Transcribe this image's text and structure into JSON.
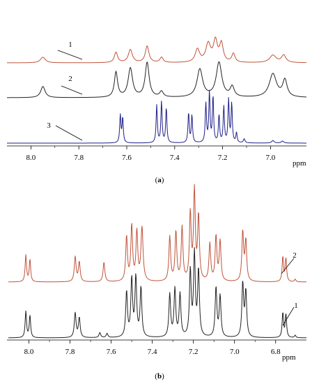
{
  "chart_data": [
    {
      "type": "line",
      "title": "",
      "panel_label_open": "(",
      "panel_label_letter": "a",
      "panel_label_close": ")",
      "xlabel": "ppm",
      "xlim": [
        8.1,
        6.85
      ],
      "x_reversed": true,
      "x_ticks": [
        "8.0",
        "7.8",
        "7.6",
        "7.4",
        "7.2",
        "7.0"
      ],
      "x_tick_values": [
        8.0,
        7.8,
        7.6,
        7.4,
        7.2,
        7.0
      ],
      "series": [
        {
          "name": "3",
          "color": "#c0533a",
          "offset_level": 2,
          "peaks": [
            {
              "x": 7.95,
              "h": 0.13,
              "w": 0.012
            },
            {
              "x": 7.645,
              "h": 0.24,
              "w": 0.008
            },
            {
              "x": 7.585,
              "h": 0.3,
              "w": 0.01
            },
            {
              "x": 7.515,
              "h": 0.38,
              "w": 0.009
            },
            {
              "x": 7.455,
              "h": 0.12,
              "w": 0.008
            },
            {
              "x": 7.305,
              "h": 0.3,
              "w": 0.011
            },
            {
              "x": 7.26,
              "h": 0.42,
              "w": 0.012
            },
            {
              "x": 7.23,
              "h": 0.48,
              "w": 0.01
            },
            {
              "x": 7.205,
              "h": 0.42,
              "w": 0.009
            },
            {
              "x": 7.155,
              "h": 0.2,
              "w": 0.008
            },
            {
              "x": 6.99,
              "h": 0.17,
              "w": 0.016
            },
            {
              "x": 6.945,
              "h": 0.17,
              "w": 0.011
            }
          ]
        },
        {
          "name": "2",
          "color": "#222222",
          "offset_level": 1,
          "peaks": [
            {
              "x": 7.95,
              "h": 0.2,
              "w": 0.011
            },
            {
              "x": 7.645,
              "h": 0.45,
              "w": 0.008
            },
            {
              "x": 7.585,
              "h": 0.52,
              "w": 0.011
            },
            {
              "x": 7.515,
              "h": 0.62,
              "w": 0.01
            },
            {
              "x": 7.455,
              "h": 0.1,
              "w": 0.009
            },
            {
              "x": 7.295,
              "h": 0.5,
              "w": 0.014
            },
            {
              "x": 7.215,
              "h": 0.62,
              "w": 0.014
            },
            {
              "x": 7.16,
              "h": 0.18,
              "w": 0.01
            },
            {
              "x": 6.99,
              "h": 0.42,
              "w": 0.018
            },
            {
              "x": 6.94,
              "h": 0.3,
              "w": 0.011
            }
          ]
        },
        {
          "name": "1",
          "color": "#1f1f8a",
          "offset_level": 0,
          "peaks": [
            {
              "x": 7.627,
              "h": 0.55,
              "w": 0.003
            },
            {
              "x": 7.617,
              "h": 0.5,
              "w": 0.003
            },
            {
              "x": 7.475,
              "h": 0.75,
              "w": 0.003
            },
            {
              "x": 7.455,
              "h": 0.82,
              "w": 0.003
            },
            {
              "x": 7.435,
              "h": 0.7,
              "w": 0.003
            },
            {
              "x": 7.342,
              "h": 0.6,
              "w": 0.003
            },
            {
              "x": 7.328,
              "h": 0.55,
              "w": 0.003
            },
            {
              "x": 7.27,
              "h": 0.78,
              "w": 0.003
            },
            {
              "x": 7.255,
              "h": 1.0,
              "w": 0.003
            },
            {
              "x": 7.24,
              "h": 0.92,
              "w": 0.003
            },
            {
              "x": 7.215,
              "h": 0.55,
              "w": 0.003
            },
            {
              "x": 7.195,
              "h": 0.72,
              "w": 0.003
            },
            {
              "x": 7.175,
              "h": 0.85,
              "w": 0.003
            },
            {
              "x": 7.162,
              "h": 0.78,
              "w": 0.003
            },
            {
              "x": 7.142,
              "h": 0.2,
              "w": 0.003
            },
            {
              "x": 7.11,
              "h": 0.08,
              "w": 0.004
            },
            {
              "x": 6.99,
              "h": 0.05,
              "w": 0.006
            },
            {
              "x": 6.95,
              "h": 0.04,
              "w": 0.006
            }
          ]
        }
      ]
    },
    {
      "type": "line",
      "title": "",
      "panel_label_open": "(",
      "panel_label_letter": "b",
      "panel_label_close": ")",
      "xlabel": "ppm",
      "xlim": [
        8.1,
        6.65
      ],
      "x_reversed": true,
      "x_ticks": [
        "8.0",
        "7.8",
        "7.6",
        "7.4",
        "7.2",
        "7.0",
        "6.8"
      ],
      "x_tick_values": [
        8.0,
        7.8,
        7.6,
        7.4,
        7.2,
        7.0,
        6.8
      ],
      "series": [
        {
          "name": "2",
          "color": "#c0533a",
          "offset_level": 1,
          "peaks": [
            {
              "x": 8.015,
              "h": 0.3,
              "w": 0.004
            },
            {
              "x": 7.995,
              "h": 0.25,
              "w": 0.004
            },
            {
              "x": 7.775,
              "h": 0.28,
              "w": 0.005
            },
            {
              "x": 7.755,
              "h": 0.22,
              "w": 0.005
            },
            {
              "x": 7.635,
              "h": 0.22,
              "w": 0.005
            },
            {
              "x": 7.525,
              "h": 0.5,
              "w": 0.005
            },
            {
              "x": 7.5,
              "h": 0.62,
              "w": 0.005
            },
            {
              "x": 7.475,
              "h": 0.55,
              "w": 0.005
            },
            {
              "x": 7.45,
              "h": 0.6,
              "w": 0.006
            },
            {
              "x": 7.315,
              "h": 0.5,
              "w": 0.005
            },
            {
              "x": 7.285,
              "h": 0.55,
              "w": 0.005
            },
            {
              "x": 7.255,
              "h": 0.6,
              "w": 0.005
            },
            {
              "x": 7.215,
              "h": 0.75,
              "w": 0.005
            },
            {
              "x": 7.195,
              "h": 1.0,
              "w": 0.005
            },
            {
              "x": 7.175,
              "h": 0.72,
              "w": 0.005
            },
            {
              "x": 7.12,
              "h": 0.42,
              "w": 0.005
            },
            {
              "x": 7.09,
              "h": 0.5,
              "w": 0.005
            },
            {
              "x": 7.07,
              "h": 0.45,
              "w": 0.005
            },
            {
              "x": 6.96,
              "h": 0.55,
              "w": 0.005
            },
            {
              "x": 6.945,
              "h": 0.45,
              "w": 0.005
            },
            {
              "x": 6.765,
              "h": 0.28,
              "w": 0.004
            },
            {
              "x": 6.75,
              "h": 0.26,
              "w": 0.004
            },
            {
              "x": 6.705,
              "h": 0.03,
              "w": 0.004
            }
          ]
        },
        {
          "name": "1",
          "color": "#222222",
          "offset_level": 0,
          "peaks": [
            {
              "x": 8.015,
              "h": 0.32,
              "w": 0.004
            },
            {
              "x": 7.995,
              "h": 0.27,
              "w": 0.004
            },
            {
              "x": 7.775,
              "h": 0.3,
              "w": 0.005
            },
            {
              "x": 7.755,
              "h": 0.24,
              "w": 0.005
            },
            {
              "x": 7.655,
              "h": 0.06,
              "w": 0.005
            },
            {
              "x": 7.62,
              "h": 0.05,
              "w": 0.005
            },
            {
              "x": 7.525,
              "h": 0.55,
              "w": 0.005
            },
            {
              "x": 7.5,
              "h": 0.7,
              "w": 0.005
            },
            {
              "x": 7.48,
              "h": 0.72,
              "w": 0.005
            },
            {
              "x": 7.455,
              "h": 0.6,
              "w": 0.005
            },
            {
              "x": 7.315,
              "h": 0.52,
              "w": 0.005
            },
            {
              "x": 7.29,
              "h": 0.58,
              "w": 0.005
            },
            {
              "x": 7.265,
              "h": 0.52,
              "w": 0.005
            },
            {
              "x": 7.215,
              "h": 0.8,
              "w": 0.005
            },
            {
              "x": 7.195,
              "h": 1.0,
              "w": 0.005
            },
            {
              "x": 7.175,
              "h": 0.8,
              "w": 0.005
            },
            {
              "x": 7.09,
              "h": 0.6,
              "w": 0.005
            },
            {
              "x": 7.07,
              "h": 0.5,
              "w": 0.005
            },
            {
              "x": 6.96,
              "h": 0.65,
              "w": 0.005
            },
            {
              "x": 6.945,
              "h": 0.55,
              "w": 0.005
            },
            {
              "x": 6.765,
              "h": 0.3,
              "w": 0.004
            },
            {
              "x": 6.75,
              "h": 0.28,
              "w": 0.004
            },
            {
              "x": 6.705,
              "h": 0.03,
              "w": 0.004
            }
          ]
        }
      ]
    }
  ]
}
